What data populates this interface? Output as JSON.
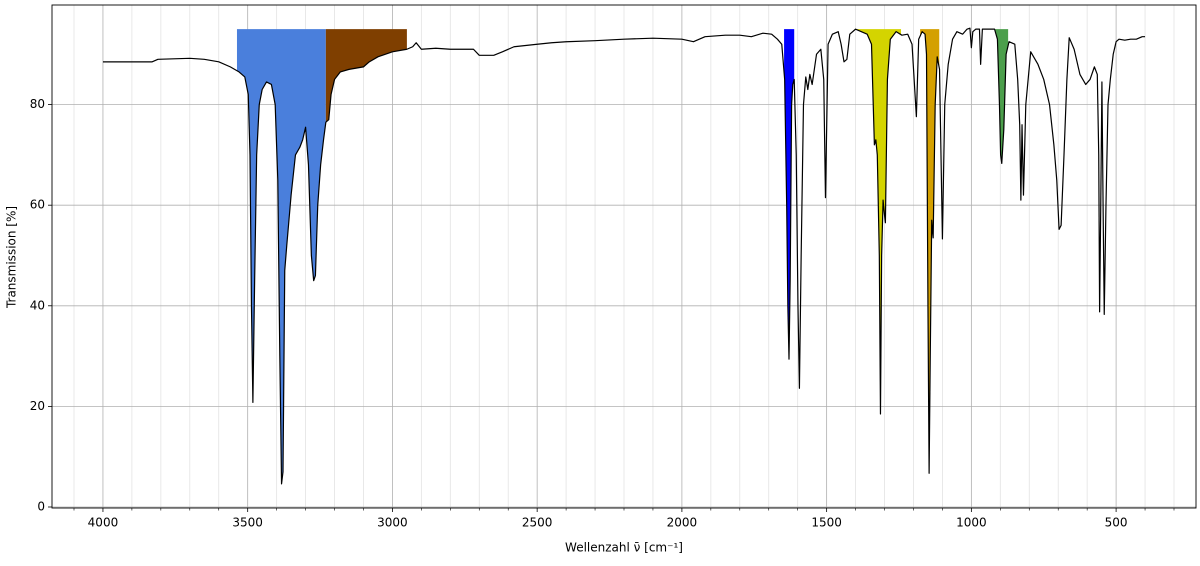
{
  "chart_data": {
    "type": "line",
    "xlabel": "Wellenzahl ν̄ [cm⁻¹]",
    "ylabel": "Transmission [%]",
    "color": "#000000",
    "x": [
      4000,
      3830,
      3810,
      3700,
      3650,
      3600,
      3560,
      3530,
      3510,
      3498,
      3492,
      3487,
      3482,
      3476,
      3469,
      3460,
      3450,
      3435,
      3418,
      3405,
      3396,
      3389,
      3383,
      3378,
      3372,
      3365,
      3350,
      3335,
      3320,
      3310,
      3300,
      3290,
      3280,
      3272,
      3266,
      3258,
      3248,
      3238,
      3230,
      3220,
      3212,
      3200,
      3180,
      3150,
      3100,
      3080,
      3050,
      3000,
      2950,
      2930,
      2918,
      2900,
      2850,
      2800,
      2720,
      2700,
      2650,
      2620,
      2580,
      2500,
      2450,
      2400,
      2300,
      2200,
      2100,
      2000,
      1960,
      1920,
      1850,
      1800,
      1760,
      1720,
      1690,
      1670,
      1655,
      1645,
      1638,
      1634,
      1630,
      1626,
      1621,
      1617,
      1612,
      1605,
      1599,
      1594,
      1588,
      1580,
      1572,
      1565,
      1558,
      1550,
      1535,
      1520,
      1510,
      1504,
      1500,
      1495,
      1480,
      1460,
      1450,
      1440,
      1430,
      1420,
      1400,
      1380,
      1360,
      1345,
      1335,
      1330,
      1325,
      1318,
      1314,
      1310,
      1305,
      1300,
      1297,
      1290,
      1280,
      1260,
      1240,
      1220,
      1205,
      1190,
      1182,
      1170,
      1160,
      1155,
      1150,
      1146,
      1142,
      1137,
      1132,
      1125,
      1118,
      1110,
      1100,
      1092,
      1080,
      1065,
      1050,
      1030,
      1015,
      1005,
      1000,
      995,
      985,
      972,
      968,
      962,
      920,
      910,
      903,
      899,
      895,
      888,
      880,
      870,
      850,
      840,
      833,
      829,
      825,
      820,
      812,
      795,
      770,
      750,
      730,
      715,
      705,
      697,
      690,
      680,
      670,
      662,
      645,
      625,
      605,
      590,
      575,
      565,
      560,
      557,
      553,
      549,
      545,
      541,
      535,
      528,
      520,
      510,
      500,
      490,
      470,
      450,
      430,
      410,
      400
    ],
    "values": [
      88.5,
      88.5,
      89,
      89.2,
      89,
      88.5,
      87.5,
      86.5,
      85.5,
      82,
      70,
      40,
      20.8,
      45,
      70,
      80,
      83,
      84.5,
      84,
      80,
      65,
      30,
      4.6,
      7,
      47,
      52,
      62,
      70,
      71.5,
      73,
      75.5,
      68,
      50,
      45,
      46,
      60,
      68,
      73,
      76.5,
      77,
      82,
      85,
      86.5,
      87,
      87.5,
      88.5,
      89.5,
      90.5,
      91,
      91.5,
      92.3,
      91,
      91.2,
      91,
      91,
      89.8,
      89.8,
      90.5,
      91.5,
      92,
      92.3,
      92.5,
      92.7,
      93,
      93.2,
      93,
      92.5,
      93.5,
      93.8,
      93.8,
      93.5,
      94.2,
      94,
      93,
      92,
      85,
      60,
      40,
      29.4,
      45,
      80,
      84,
      85,
      70,
      40,
      23.6,
      50,
      80,
      85.5,
      83,
      86,
      84,
      90,
      91,
      85,
      61.5,
      75,
      92,
      94,
      94.5,
      92,
      88.5,
      89,
      94,
      95,
      94.5,
      94,
      92,
      72,
      73,
      70,
      50,
      18.5,
      50,
      61,
      58,
      56.5,
      85,
      93,
      94.5,
      93.8,
      94,
      92,
      77.6,
      93,
      94.5,
      94,
      90,
      40,
      6.7,
      30,
      57,
      53.5,
      80,
      89.5,
      87,
      53.3,
      80,
      88,
      93,
      94.5,
      94,
      95,
      95.2,
      91.3,
      94.5,
      95,
      95,
      88,
      95,
      95,
      93,
      80,
      70,
      68.3,
      75,
      90,
      92.5,
      92,
      85,
      76,
      61,
      76,
      62,
      80,
      90.5,
      88,
      85,
      80,
      72,
      65,
      55.2,
      56,
      70,
      85,
      93.3,
      91,
      86,
      84,
      85,
      87.5,
      86,
      70,
      38.8,
      60,
      84.5,
      60,
      38.3,
      60,
      80,
      85,
      90,
      92.5,
      93,
      92.8,
      93,
      93,
      93.5,
      93.5
    ],
    "band_top": 95,
    "bands": [
      {
        "from": 3537,
        "to": 3230,
        "color": "#4a7fdc"
      },
      {
        "from": 3230,
        "to": 2950,
        "color": "#7f3f00"
      },
      {
        "from": 1647,
        "to": 1612,
        "color": "#0000ff"
      },
      {
        "from": 1398,
        "to": 1243,
        "color": "#d4d400"
      },
      {
        "from": 1177,
        "to": 1111,
        "color": "#d4a000"
      },
      {
        "from": 921,
        "to": 873,
        "color": "#4c9f4c"
      }
    ],
    "xlim": [
      4176,
      224
    ],
    "xticks": [
      4000,
      3500,
      3000,
      2500,
      2000,
      1500,
      1000,
      500
    ],
    "minor_xticks": [
      4100,
      3900,
      3800,
      3700,
      3600,
      3400,
      3300,
      3200,
      3100,
      2900,
      2800,
      2700,
      2600,
      2400,
      2300,
      2200,
      2100,
      1900,
      1800,
      1700,
      1600,
      1400,
      1300,
      1200,
      1100,
      900,
      800,
      700,
      600,
      400,
      300
    ],
    "ylim": [
      -0.2,
      99.8
    ],
    "yticks": [
      0,
      20,
      40,
      60,
      80
    ],
    "grid": true
  }
}
